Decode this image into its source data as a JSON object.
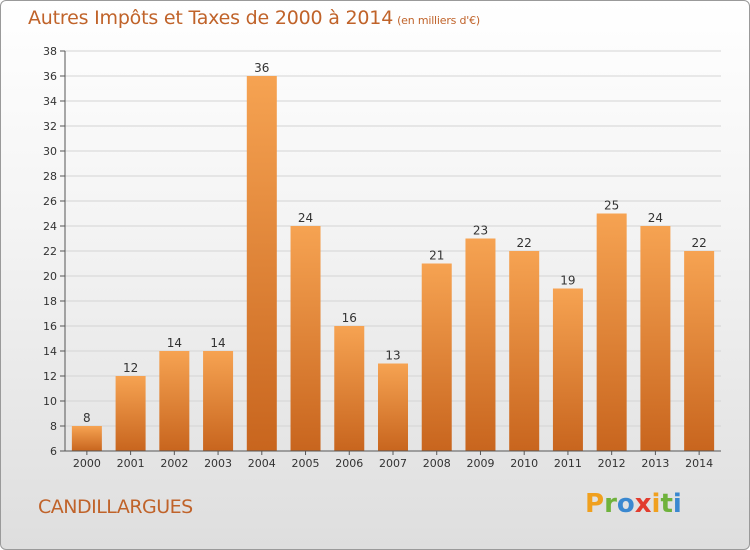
{
  "header": {
    "title": "Autres Impôts et Taxes de 2000 à 2014",
    "unit": "(en milliers d'€)"
  },
  "footer": {
    "commune": "CANDILLARGUES",
    "logo_letters": [
      "P",
      "r",
      "o",
      "x",
      "i",
      "t",
      "i"
    ],
    "logo_colors": [
      "#f0a01e",
      "#6fb23c",
      "#3a88d0",
      "#e23c2e",
      "#f0a01e",
      "#6fb23c",
      "#3a88d0"
    ]
  },
  "colors": {
    "bar_light": "#f6a352",
    "bar_dark": "#c8651e",
    "title": "#c0632a",
    "grid": "#d4d4d4",
    "axis": "#555555"
  },
  "chart_data": {
    "type": "bar",
    "title": "Autres Impôts et Taxes de 2000 à 2014",
    "subtitle": "(en milliers d'€)",
    "categories": [
      "2000",
      "2001",
      "2002",
      "2003",
      "2004",
      "2005",
      "2006",
      "2007",
      "2008",
      "2009",
      "2010",
      "2011",
      "2012",
      "2013",
      "2014"
    ],
    "values": [
      8,
      12,
      14,
      14,
      36,
      24,
      16,
      13,
      21,
      23,
      22,
      19,
      25,
      24,
      22
    ],
    "ylim": [
      6,
      38
    ],
    "yticks": [
      6,
      8,
      10,
      12,
      14,
      16,
      18,
      20,
      22,
      24,
      26,
      28,
      30,
      32,
      34,
      36,
      38
    ],
    "grid": true,
    "legend": "none"
  }
}
